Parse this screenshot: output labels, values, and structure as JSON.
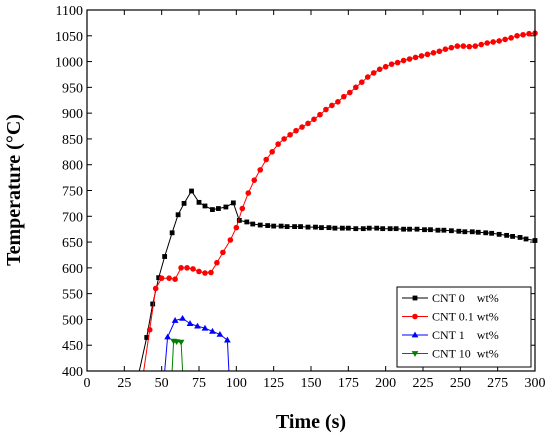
{
  "chart_data": {
    "type": "line",
    "title": "",
    "xlabel": "Time (s)",
    "ylabel": "Temperature (°C)",
    "xlim": [
      0,
      300
    ],
    "ylim": [
      400,
      1100
    ],
    "xticks": [
      "0",
      "25",
      "50",
      "75",
      "100",
      "125",
      "150",
      "175",
      "200",
      "225",
      "250",
      "275",
      "300"
    ],
    "yticks": [
      "400",
      "450",
      "500",
      "550",
      "600",
      "650",
      "700",
      "750",
      "800",
      "850",
      "900",
      "950",
      "1000",
      "1050",
      "1100"
    ],
    "grid": false,
    "legend_position": "bottom-right",
    "series": [
      {
        "name": "CNT 0    wt%",
        "color": "#000000",
        "marker": "square",
        "x": [
          35,
          40,
          44,
          48,
          52,
          57,
          61,
          65,
          70,
          75,
          79,
          84,
          88,
          93,
          98,
          102,
          107,
          111,
          116,
          121,
          125,
          130,
          134,
          139,
          143,
          148,
          153,
          157,
          162,
          166,
          171,
          175,
          180,
          185,
          189,
          194,
          198,
          203,
          207,
          212,
          216,
          221,
          226,
          230,
          235,
          239,
          244,
          249,
          253,
          258,
          262,
          267,
          271,
          276,
          281,
          285,
          290,
          294,
          300
        ],
        "y": [
          400,
          465,
          530,
          581,
          622,
          668,
          703,
          725,
          749,
          727,
          720,
          713,
          715,
          718,
          726,
          692,
          689,
          685,
          683,
          682,
          681,
          681,
          680,
          680,
          680,
          679,
          679,
          678,
          678,
          677,
          677,
          677,
          676,
          676,
          677,
          677,
          676,
          676,
          676,
          675,
          675,
          675,
          674,
          674,
          673,
          673,
          672,
          671,
          670,
          670,
          669,
          668,
          667,
          665,
          663,
          661,
          659,
          656,
          653
        ]
      },
      {
        "name": "CNT 0.1 wt%",
        "color": "#ff0000",
        "marker": "circle",
        "x": [
          38,
          42,
          46,
          50,
          55,
          59,
          63,
          67,
          71,
          75,
          79,
          83,
          87,
          91,
          96,
          100,
          104,
          108,
          112,
          116,
          120,
          124,
          128,
          132,
          136,
          140,
          144,
          148,
          152,
          156,
          160,
          164,
          168,
          172,
          176,
          180,
          184,
          188,
          192,
          196,
          200,
          204,
          208,
          212,
          216,
          220,
          224,
          228,
          232,
          236,
          240,
          244,
          248,
          252,
          256,
          260,
          264,
          268,
          272,
          276,
          280,
          284,
          288,
          292,
          296,
          300
        ],
        "y": [
          400,
          480,
          560,
          580,
          580,
          578,
          600,
          600,
          598,
          593,
          590,
          591,
          610,
          630,
          654,
          678,
          715,
          745,
          770,
          790,
          810,
          825,
          840,
          850,
          858,
          866,
          873,
          880,
          888,
          897,
          907,
          915,
          922,
          932,
          940,
          950,
          960,
          970,
          978,
          985,
          990,
          995,
          998,
          1002,
          1005,
          1008,
          1011,
          1014,
          1017,
          1020,
          1024,
          1027,
          1030,
          1030,
          1029,
          1030,
          1033,
          1036,
          1038,
          1040,
          1043,
          1046,
          1050,
          1052,
          1054,
          1055
        ]
      },
      {
        "name": "CNT 1    wt%",
        "color": "#0000ff",
        "marker": "triangle-up",
        "x": [
          52,
          54,
          59,
          64,
          69,
          74,
          79,
          84,
          89,
          94,
          95
        ],
        "y": [
          400,
          466,
          498,
          502,
          492,
          487,
          483,
          477,
          471,
          460,
          400
        ]
      },
      {
        "name": "CNT 10  wt%",
        "color": "#008000",
        "marker": "triangle-down",
        "x": [
          57,
          58,
          60,
          63,
          64
        ],
        "y": [
          400,
          458,
          457,
          456,
          400
        ]
      }
    ]
  }
}
